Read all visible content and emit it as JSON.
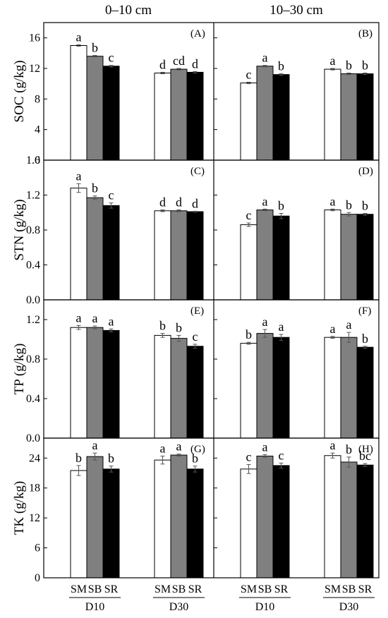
{
  "column_titles": [
    "0–10 cm",
    "10–30 cm"
  ],
  "bar_colors": {
    "SM": "#ffffff",
    "SB": "#808080",
    "SR": "#000000"
  },
  "treatments": [
    "SM",
    "SB",
    "SR"
  ],
  "groups": [
    "D10",
    "D30"
  ],
  "chart_data": [
    {
      "type": "bar",
      "title": "",
      "ylabel": "SOC (g/kg)",
      "ylim": [
        0,
        18
      ],
      "yticks": [
        0,
        4,
        8,
        12,
        16
      ],
      "ytick_labels": [
        "0",
        "4",
        "8",
        "12",
        "16"
      ],
      "panels": [
        {
          "label": "(A)",
          "depth": "0–10 cm",
          "groups": [
            {
              "name": "D10",
              "values": [
                15.0,
                13.6,
                12.3
              ],
              "errors": [
                0.1,
                0.1,
                0.1
              ],
              "letters": [
                "a",
                "b",
                "c"
              ]
            },
            {
              "name": "D30",
              "values": [
                11.4,
                11.9,
                11.5
              ],
              "errors": [
                0.1,
                0.1,
                0.1
              ],
              "letters": [
                "d",
                "cd",
                "d"
              ]
            }
          ]
        },
        {
          "label": "(B)",
          "depth": "10–30 cm",
          "groups": [
            {
              "name": "D10",
              "values": [
                10.1,
                12.3,
                11.2
              ],
              "errors": [
                0.1,
                0.1,
                0.1
              ],
              "letters": [
                "c",
                "a",
                "b"
              ]
            },
            {
              "name": "D30",
              "values": [
                11.9,
                11.3,
                11.3
              ],
              "errors": [
                0.1,
                0.1,
                0.1
              ],
              "letters": [
                "a",
                "b",
                "b"
              ]
            }
          ]
        }
      ]
    },
    {
      "type": "bar",
      "title": "",
      "ylabel": "STN (g/kg)",
      "ylim": [
        0,
        1.6
      ],
      "yticks": [
        0,
        0.4,
        0.8,
        1.2,
        1.6
      ],
      "ytick_labels": [
        "0.0",
        "0.4",
        "0.8",
        "1.2",
        "1.6"
      ],
      "panels": [
        {
          "label": "(C)",
          "depth": "0–10 cm",
          "groups": [
            {
              "name": "D10",
              "values": [
                1.28,
                1.17,
                1.08
              ],
              "errors": [
                0.05,
                0.02,
                0.03
              ],
              "letters": [
                "a",
                "b",
                "c"
              ]
            },
            {
              "name": "D30",
              "values": [
                1.02,
                1.02,
                1.01
              ],
              "errors": [
                0.01,
                0.01,
                0.005
              ],
              "letters": [
                "d",
                "d",
                "d"
              ]
            }
          ]
        },
        {
          "label": "(D)",
          "depth": "10–30 cm",
          "groups": [
            {
              "name": "D10",
              "values": [
                0.86,
                1.03,
                0.96
              ],
              "errors": [
                0.02,
                0.01,
                0.03
              ],
              "letters": [
                "c",
                "a",
                "b"
              ]
            },
            {
              "name": "D30",
              "values": [
                1.03,
                0.98,
                0.98
              ],
              "errors": [
                0.01,
                0.02,
                0.01
              ],
              "letters": [
                "a",
                "b",
                "b"
              ]
            }
          ]
        }
      ]
    },
    {
      "type": "bar",
      "title": "",
      "ylabel": "TP (g/kg)",
      "ylim": [
        0,
        1.4
      ],
      "yticks": [
        0,
        0.4,
        0.8,
        1.2
      ],
      "ytick_labels": [
        "0.0",
        "0.4",
        "0.8",
        "1.2"
      ],
      "panels": [
        {
          "label": "(E)",
          "depth": "0–10 cm",
          "groups": [
            {
              "name": "D10",
              "values": [
                1.12,
                1.12,
                1.09
              ],
              "errors": [
                0.02,
                0.015,
                0.015
              ],
              "letters": [
                "a",
                "a",
                "a"
              ]
            },
            {
              "name": "D30",
              "values": [
                1.04,
                1.01,
                0.93
              ],
              "errors": [
                0.02,
                0.03,
                0.02
              ],
              "letters": [
                "b",
                "b",
                "c"
              ]
            }
          ]
        },
        {
          "label": "(F)",
          "depth": "10–30 cm",
          "groups": [
            {
              "name": "D10",
              "values": [
                0.96,
                1.06,
                1.02
              ],
              "errors": [
                0.01,
                0.04,
                0.03
              ],
              "letters": [
                "b",
                "a",
                "a"
              ]
            },
            {
              "name": "D30",
              "values": [
                1.02,
                1.02,
                0.92
              ],
              "errors": [
                0.01,
                0.05,
                0.01
              ],
              "letters": [
                "a",
                "a",
                "b"
              ]
            }
          ]
        }
      ]
    },
    {
      "type": "bar",
      "title": "",
      "ylabel": "TK (g/kg)",
      "ylim": [
        0,
        28
      ],
      "yticks": [
        0,
        6,
        12,
        18,
        24
      ],
      "ytick_labels": [
        "0",
        "6",
        "12",
        "18",
        "24"
      ],
      "panels": [
        {
          "label": "(G)",
          "depth": "0–10 cm",
          "groups": [
            {
              "name": "D10",
              "values": [
                21.5,
                24.3,
                21.8
              ],
              "errors": [
                1.0,
                0.7,
                0.6
              ],
              "letters": [
                "b",
                "a",
                "b"
              ]
            },
            {
              "name": "D30",
              "values": [
                23.6,
                24.6,
                21.8
              ],
              "errors": [
                0.8,
                0.2,
                0.6
              ],
              "letters": [
                "a",
                "a",
                "b"
              ]
            }
          ]
        },
        {
          "label": "(H)",
          "depth": "10–30 cm",
          "groups": [
            {
              "name": "D10",
              "values": [
                21.8,
                24.4,
                22.5
              ],
              "errors": [
                0.9,
                0.3,
                0.5
              ],
              "letters": [
                "c",
                "a",
                "c"
              ]
            },
            {
              "name": "D30",
              "values": [
                24.5,
                23.2,
                22.6
              ],
              "errors": [
                0.5,
                1.0,
                0.3
              ],
              "letters": [
                "a",
                "b",
                "bc"
              ]
            }
          ]
        }
      ]
    }
  ]
}
